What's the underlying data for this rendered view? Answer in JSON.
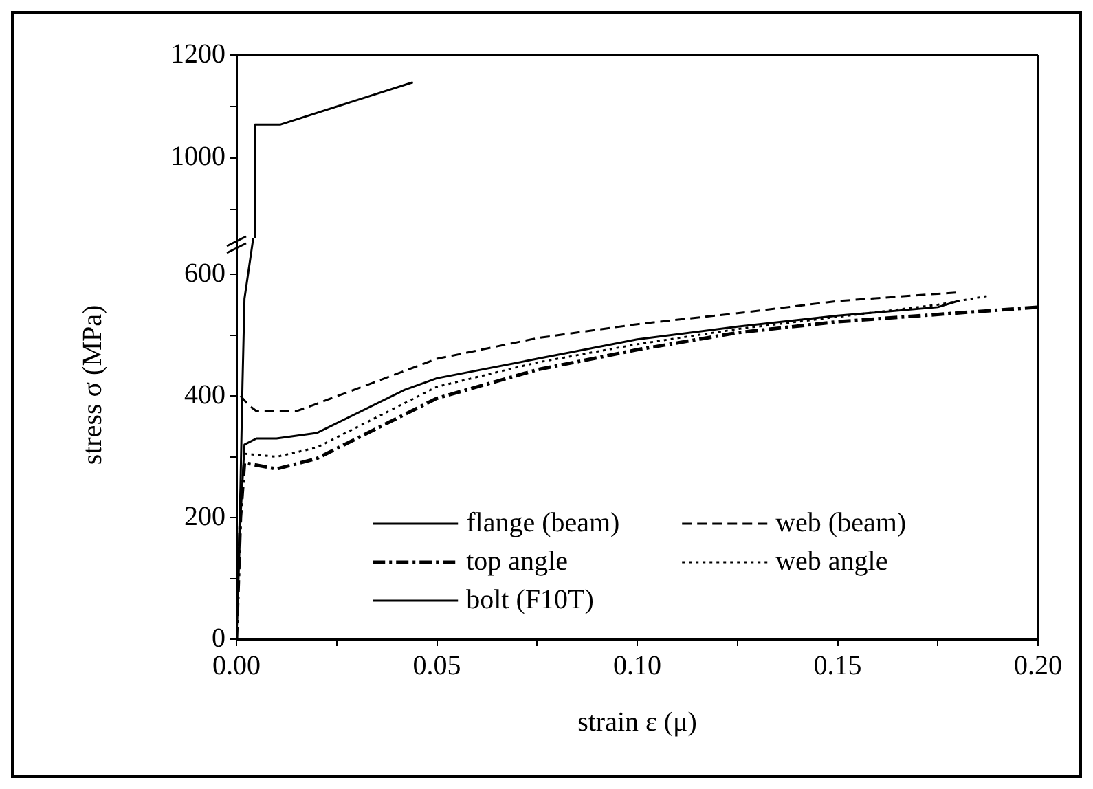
{
  "chart_data": [
    {
      "type": "line",
      "xlim": [
        0,
        0.2
      ],
      "ylim": [
        845,
        1200
      ],
      "yticks": [
        {
          "value": 900,
          "label": null
        },
        1000,
        {
          "value": 1100,
          "label": null
        },
        1200
      ],
      "tick_labels": "y",
      "marker": "none",
      "series": [
        {
          "color": "#000000",
          "line_style": "solid",
          "x": [
            0.0046,
            0.0046,
            0.011,
            0.044
          ],
          "values": [
            845,
            1065,
            1065,
            1147
          ]
        }
      ]
    },
    {
      "type": "line",
      "xlabel": "strain ε (μ)",
      "ylabel": "stress σ (MPa)",
      "xlim": [
        0,
        0.2
      ],
      "xticks": [
        {
          "value": 0,
          "label": "0.00"
        },
        {
          "value": 0.025,
          "label": null
        },
        {
          "value": 0.05,
          "label": "0.05"
        },
        {
          "value": 0.075,
          "label": null
        },
        {
          "value": 0.1,
          "label": "0.10"
        },
        {
          "value": 0.125,
          "label": null
        },
        {
          "value": 0.15,
          "label": "0.15"
        },
        {
          "value": 0.175,
          "label": null
        },
        {
          "value": 0.2,
          "label": "0.20"
        }
      ],
      "ylim": [
        0,
        660
      ],
      "yticks": [
        0,
        {
          "value": 100,
          "label": null
        },
        200,
        {
          "value": 300,
          "label": null
        },
        400,
        {
          "value": 500,
          "label": null
        },
        600
      ],
      "legend": "bottom",
      "marker": "none",
      "series": [
        {
          "name": "flange (beam)",
          "color": "#000000",
          "line_style": "solid",
          "x": [
            0,
            0.001,
            0.002,
            0.005,
            0.01,
            0.02,
            0.042,
            0.05,
            0.075,
            0.1,
            0.125,
            0.15,
            0.175,
            0.18
          ],
          "values": [
            0,
            200,
            320,
            330,
            330,
            339,
            410,
            429,
            461,
            493,
            514,
            532,
            546,
            556
          ]
        },
        {
          "name": "web (beam)",
          "color": "#000000",
          "line_style": "dashed",
          "x": [
            0.001,
            0.003,
            0.005,
            0.015,
            0.02,
            0.05,
            0.075,
            0.1,
            0.125,
            0.15,
            0.175,
            0.18
          ],
          "values": [
            400,
            385,
            375,
            375,
            387,
            461,
            495,
            518,
            536,
            556,
            568,
            570
          ]
        },
        {
          "name": "top angle",
          "color": "#000000",
          "line_style": "dashdot",
          "x": [
            0,
            0.001,
            0.002,
            0.01,
            0.02,
            0.05,
            0.075,
            0.1,
            0.125,
            0.15,
            0.175,
            0.2
          ],
          "values": [
            0,
            200,
            290,
            280,
            297,
            396,
            443,
            476,
            504,
            522,
            534,
            546
          ]
        },
        {
          "name": "web angle",
          "color": "#000000",
          "line_style": "dotted",
          "x": [
            0.002,
            0.01,
            0.02,
            0.05,
            0.075,
            0.1,
            0.125,
            0.15,
            0.175,
            0.188
          ],
          "values": [
            305,
            300,
            315,
            415,
            455,
            485,
            510,
            530,
            550,
            565
          ]
        },
        {
          "name": "bolt (F10T)",
          "color": "#000000",
          "line_style": "solid",
          "x": [
            0,
            0.001,
            0.0015,
            0.002,
            0.0042
          ],
          "values": [
            0,
            250,
            420,
            560,
            660
          ]
        }
      ]
    }
  ]
}
